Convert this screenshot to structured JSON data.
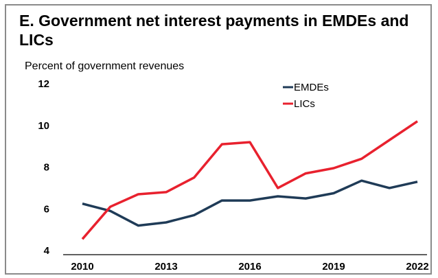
{
  "chart_data": {
    "type": "line",
    "title": "E. Government net interest payments in EMDEs and LICs",
    "ylabel": "Percent of government revenues",
    "xlabel": "",
    "ylim": [
      4,
      12
    ],
    "yticks": [
      "4",
      "6",
      "8",
      "10",
      "12"
    ],
    "xticks": [
      "2010",
      "2013",
      "2016",
      "2019",
      "2022"
    ],
    "x": [
      2010,
      2011,
      2012,
      2013,
      2014,
      2015,
      2016,
      2017,
      2018,
      2019,
      2020,
      2021,
      2022
    ],
    "series": [
      {
        "name": "EMDEs",
        "color": "#1f3b57",
        "values": [
          6.25,
          5.9,
          5.2,
          5.35,
          5.7,
          6.4,
          6.4,
          6.6,
          6.5,
          6.75,
          7.35,
          7.0,
          7.3
        ]
      },
      {
        "name": "LICs",
        "color": "#e8212e",
        "values": [
          4.55,
          6.1,
          6.7,
          6.8,
          7.5,
          9.1,
          9.2,
          7.0,
          7.7,
          7.95,
          8.4,
          9.3,
          10.2
        ]
      }
    ],
    "legend_position": "top-right",
    "grid": false
  }
}
